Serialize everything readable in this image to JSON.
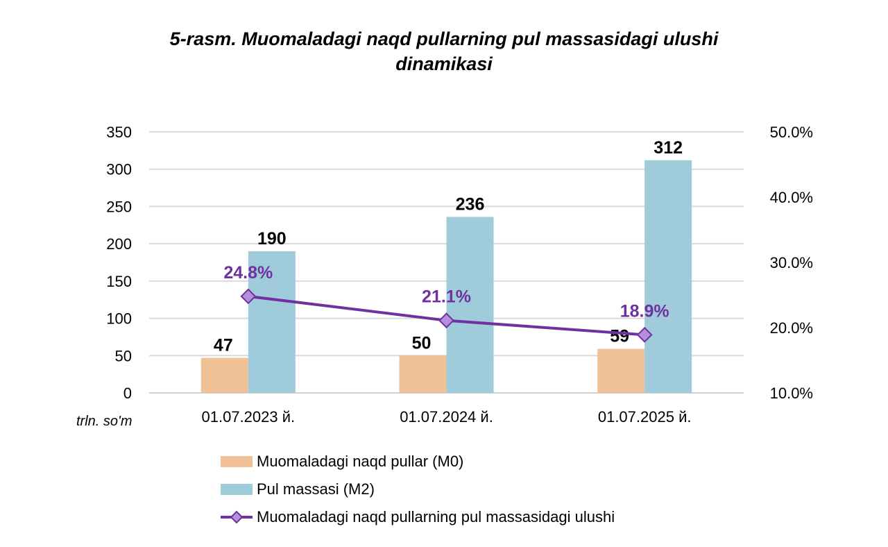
{
  "chart_data": {
    "type": "bar+line",
    "title": "5-rasm. Muomaladagi naqd pullarning pul massasidagi ulushi dinamikasi",
    "title_lines": [
      "5-rasm. Muomaladagi naqd pullarning pul massasidagi ulushi",
      "dinamikasi"
    ],
    "categories": [
      "01.07.2023 й.",
      "01.07.2024 й.",
      "01.07.2025 й."
    ],
    "ylabel": "trln. so'm",
    "ylim": [
      0,
      350
    ],
    "yticks": [
      "0",
      "50",
      "100",
      "150",
      "200",
      "250",
      "300",
      "350"
    ],
    "y2lim": [
      10,
      50
    ],
    "y2ticks": [
      "10.0%",
      "20.0%",
      "30.0%",
      "40.0%",
      "50.0%"
    ],
    "grid": true,
    "legend_position": "bottom",
    "series": [
      {
        "name": "Muomaladagi naqd pullar (M0)",
        "type": "bar",
        "axis": "left",
        "color": "#F0C096",
        "values": [
          47,
          50,
          59
        ],
        "labels": [
          "47",
          "50",
          "59"
        ]
      },
      {
        "name": "Pul massasi (M2)",
        "type": "bar",
        "axis": "left",
        "color": "#9FCBDB",
        "values": [
          190,
          236,
          312
        ],
        "labels": [
          "190",
          "236",
          "312"
        ]
      },
      {
        "name": "Muomaladagi naqd pullarning pul massasidagi ulushi",
        "type": "line",
        "axis": "right",
        "color": "#7030A0",
        "marker_fill": "#B48FDB",
        "values": [
          24.8,
          21.1,
          18.9
        ],
        "labels": [
          "24.8%",
          "21.1%",
          "18.9%"
        ]
      }
    ]
  }
}
